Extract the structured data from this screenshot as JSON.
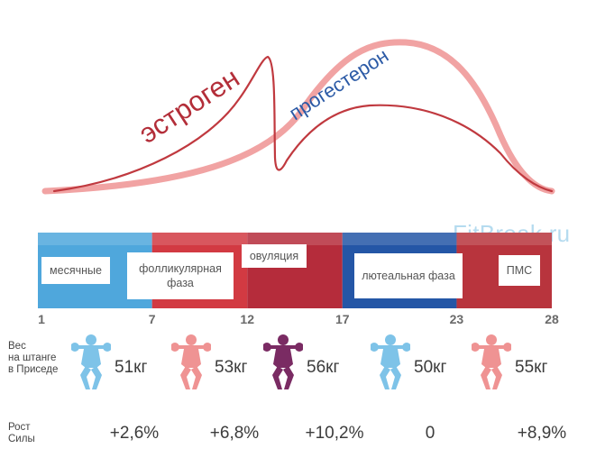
{
  "watermark": "FitBreak.ru",
  "hormones": {
    "estrogen_label": "эстроген",
    "progesterone_label": "прогестерон",
    "estrogen_color": "#c0393f",
    "progesterone_color": "#f1a3a3",
    "progesterone_label_color": "#2b5aa6"
  },
  "phases": [
    {
      "label": "месячные",
      "start_day": 1,
      "end_day": 7,
      "color": "#4fa7dc"
    },
    {
      "label": "фолликулярная фаза",
      "start_day": 7,
      "end_day": 12,
      "color": "#d23a42"
    },
    {
      "label": "овуляция",
      "start_day": 12,
      "end_day": 17,
      "color": "#b52c3b"
    },
    {
      "label": "лютеальная фаза",
      "start_day": 17,
      "end_day": 23,
      "color": "#2456a6"
    },
    {
      "label": "ПМС",
      "start_day": 23,
      "end_day": 28,
      "color": "#b8343d"
    }
  ],
  "day_ticks": [
    "1",
    "7",
    "12",
    "17",
    "23",
    "28"
  ],
  "weight_row_label": "Вес\nна штанге\nв Приседе",
  "growth_row_label": "Рост\nСилы",
  "squats": [
    {
      "weight": "51кг",
      "growth": "+2,6%",
      "color": "#7ec3e8",
      "icon": "squat-figure-icon"
    },
    {
      "weight": "53кг",
      "growth": "+6,8%",
      "color": "#ef9393",
      "icon": "squat-figure-icon"
    },
    {
      "weight": "56кг",
      "growth": "+10,2%",
      "color": "#7a2b63",
      "icon": "squat-figure-icon"
    },
    {
      "weight": "50кг",
      "growth": "0",
      "color": "#7ec3e8",
      "icon": "squat-figure-icon"
    },
    {
      "weight": "55кг",
      "growth": "+8,9%",
      "color": "#ef9393",
      "icon": "squat-figure-icon"
    }
  ]
}
